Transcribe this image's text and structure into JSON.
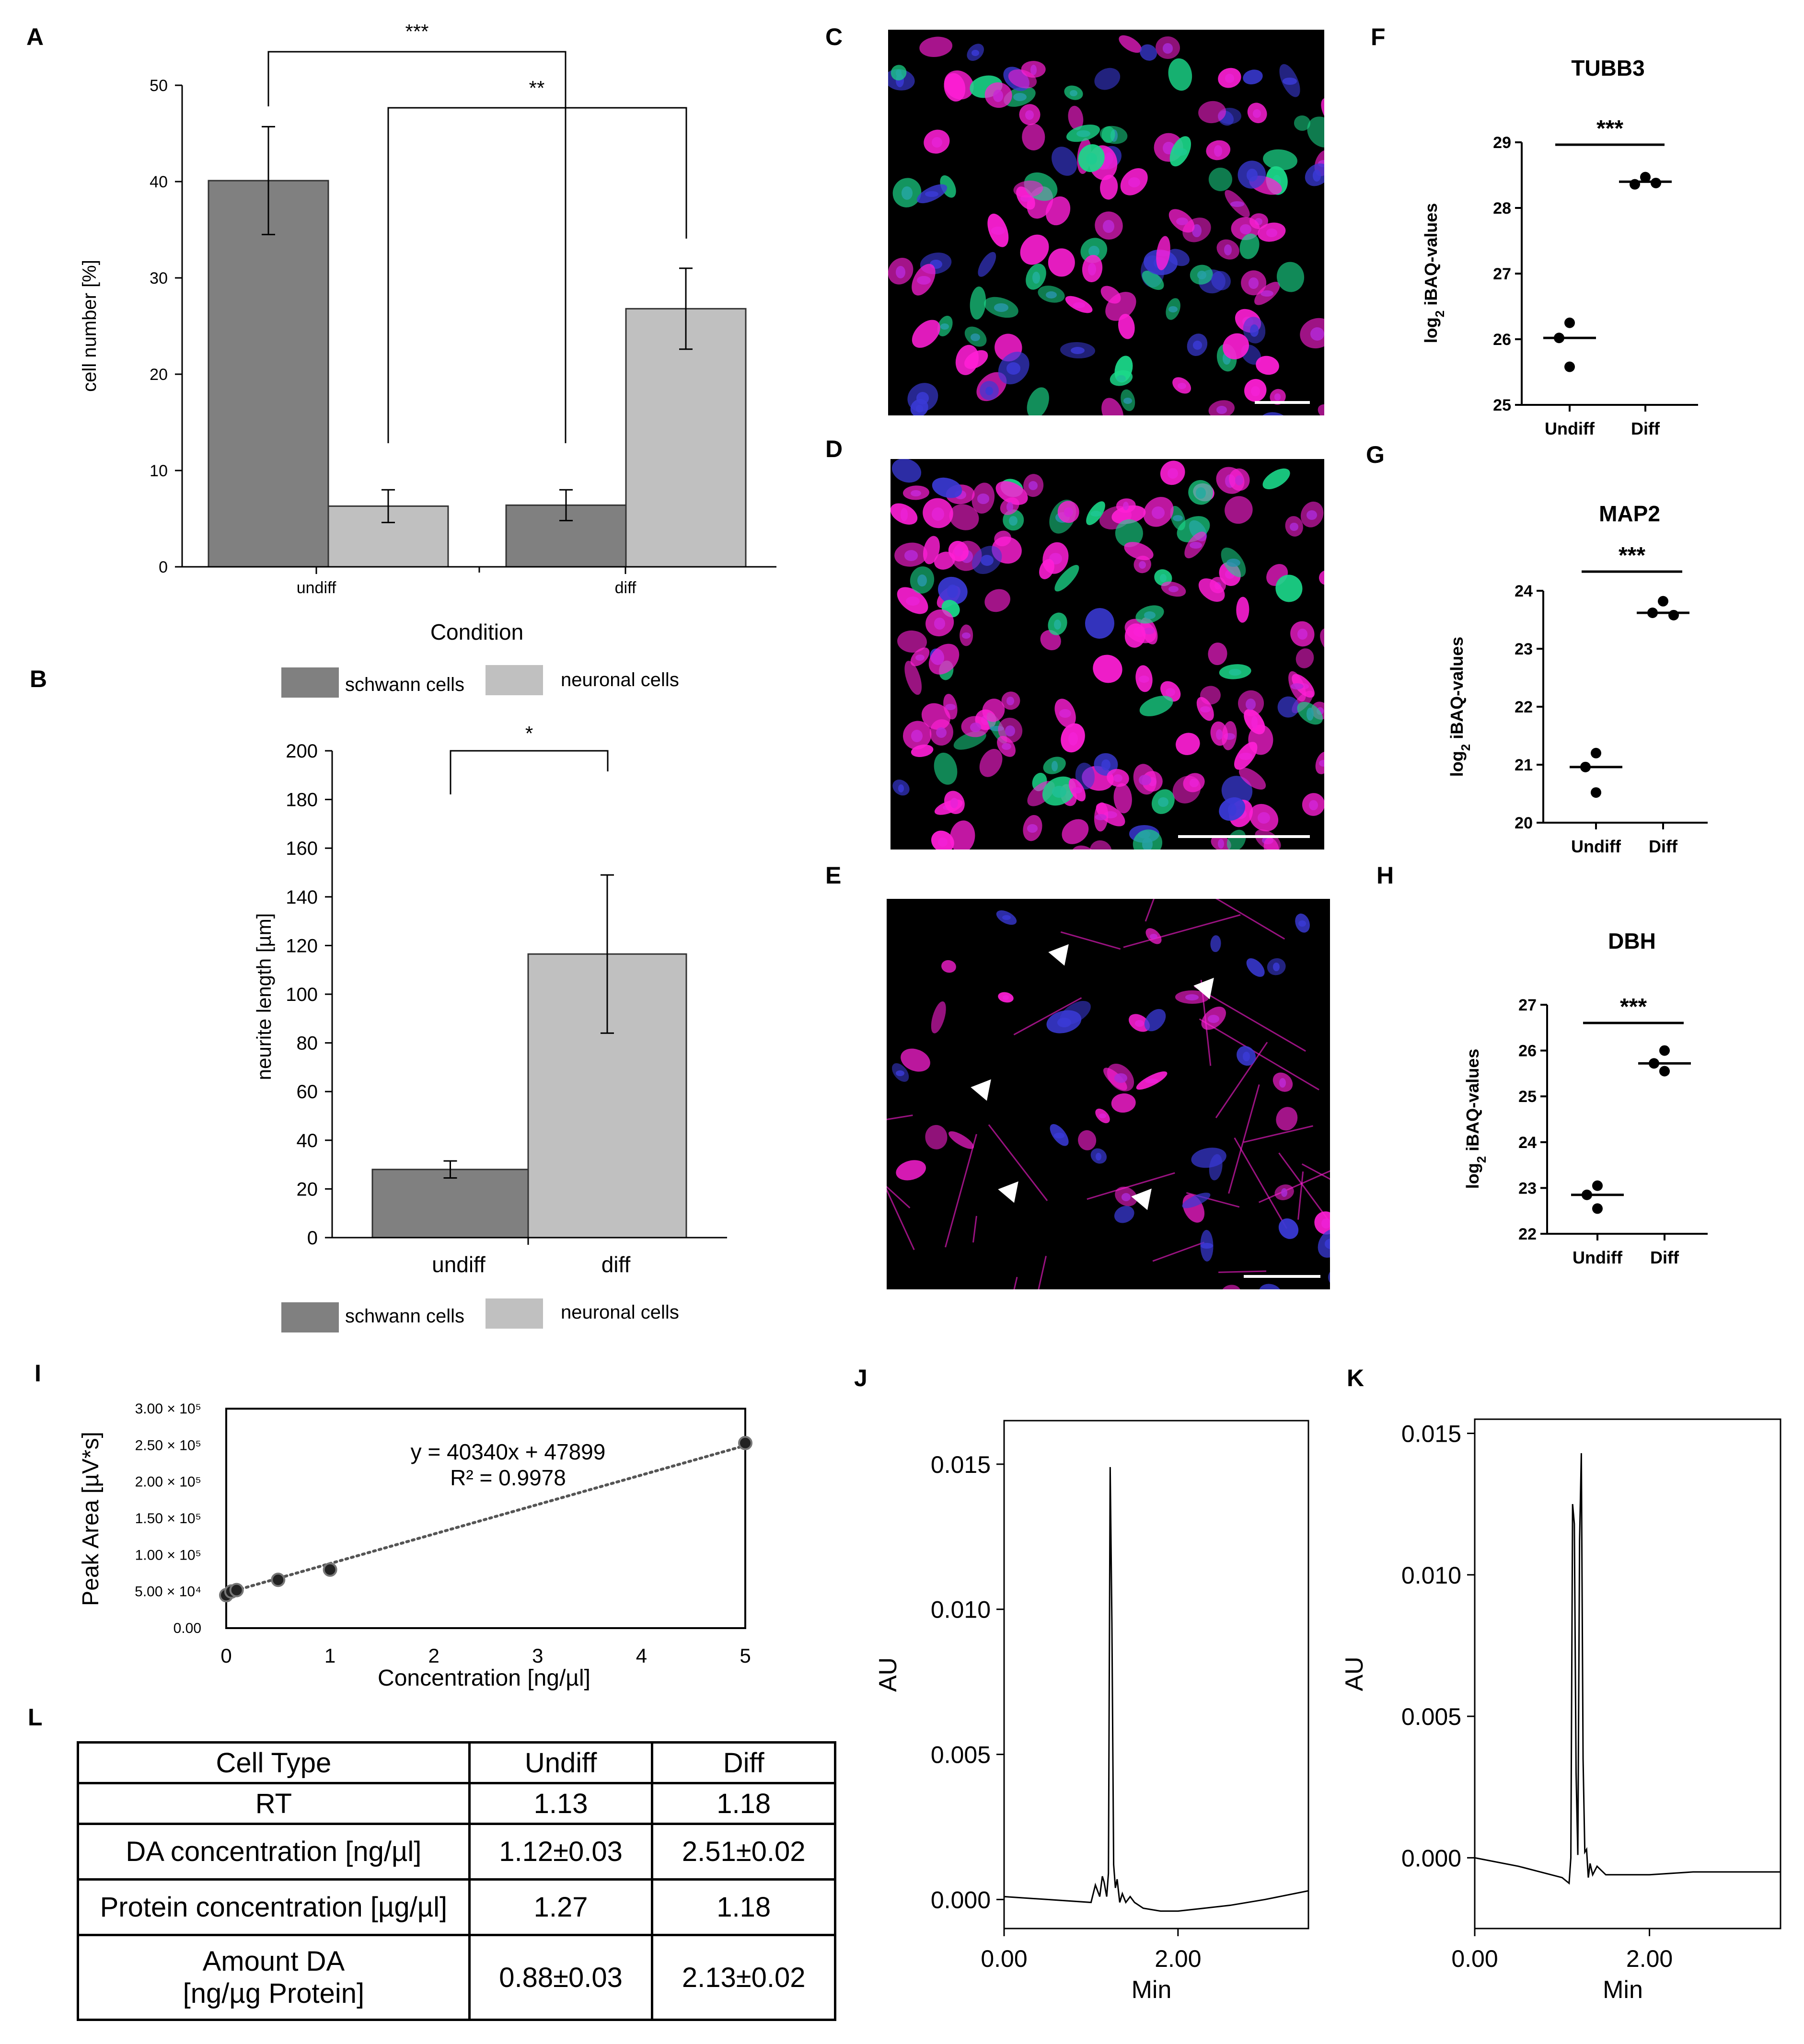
{
  "panels": [
    "A",
    "B",
    "C",
    "D",
    "E",
    "F",
    "G",
    "H",
    "I",
    "J",
    "K",
    "L"
  ],
  "colors": {
    "schwann": "#808080",
    "neuronal": "#c0c0c0",
    "magenta": "#ff1fd6",
    "green": "#1bd98a",
    "blue": "#3a3ad6"
  },
  "icons": {
    "arrowhead": "white-arrowhead-icon",
    "scalebar": "scale-bar"
  },
  "chart_data": [
    {
      "id": "A",
      "type": "bar",
      "categories": [
        "undiff",
        "diff"
      ],
      "series": [
        {
          "name": "schwann cells",
          "values": [
            40.1,
            6.4
          ],
          "errors": [
            5.6,
            1.6
          ]
        },
        {
          "name": "neuronal cells",
          "values": [
            6.3,
            26.8
          ],
          "errors": [
            1.7,
            4.2
          ]
        }
      ],
      "xlabel": "Condition",
      "ylabel": "cell number [%]",
      "ylim": [
        0,
        50
      ],
      "yticks": [
        "0",
        "10",
        "20",
        "30",
        "40",
        "50"
      ],
      "legend_position": "bottom",
      "significance": [
        "***",
        "**"
      ]
    },
    {
      "id": "B",
      "type": "bar",
      "categories": [
        "undiff",
        "diff"
      ],
      "series": [
        {
          "name": "",
          "values": [
            28,
            116.5
          ],
          "errors": [
            3.5,
            32.5
          ]
        }
      ],
      "legend_series": [
        "schwann cells",
        "neuronal cells"
      ],
      "ylabel": "neurite length [µm]",
      "ylim": [
        0,
        200
      ],
      "yticks": [
        "0",
        "20",
        "40",
        "60",
        "80",
        "100",
        "120",
        "140",
        "160",
        "180",
        "200"
      ],
      "legend_position": "bottom",
      "significance": [
        "*"
      ]
    },
    {
      "id": "F",
      "type": "scatter",
      "title": "TUBB3",
      "ylabel_main": "log",
      "ylabel_sub": "2",
      "ylabel_rest": " iBAQ-values",
      "ylim": [
        25,
        29
      ],
      "yticks": [
        "25",
        "26",
        "27",
        "28",
        "29"
      ],
      "groups": [
        {
          "name": "Undiff",
          "points": [
            26.25,
            26.02,
            25.58
          ],
          "mean": 26.02
        },
        {
          "name": "Diff",
          "points": [
            28.47,
            28.36,
            28.38
          ],
          "mean": 28.4
        }
      ],
      "significance": "***"
    },
    {
      "id": "G",
      "type": "scatter",
      "title": "MAP2",
      "ylabel_main": "log",
      "ylabel_sub": "2",
      "ylabel_rest": " iBAQ-values",
      "ylim": [
        20,
        24
      ],
      "yticks": [
        "20",
        "21",
        "22",
        "23",
        "24"
      ],
      "groups": [
        {
          "name": "Undiff",
          "points": [
            21.2,
            20.96,
            20.52
          ],
          "mean": 20.96
        },
        {
          "name": "Diff",
          "points": [
            23.82,
            23.62,
            23.58
          ],
          "mean": 23.62
        }
      ],
      "significance": "***"
    },
    {
      "id": "H",
      "type": "scatter",
      "title": "DBH",
      "ylabel_main": "log",
      "ylabel_sub": "2",
      "ylabel_rest": " iBAQ-values",
      "ylim": [
        22,
        27
      ],
      "yticks": [
        "22",
        "23",
        "24",
        "25",
        "26",
        "27"
      ],
      "groups": [
        {
          "name": "Undiff",
          "points": [
            23.05,
            22.85,
            22.55
          ],
          "mean": 22.85
        },
        {
          "name": "Diff",
          "points": [
            26.0,
            25.72,
            25.55
          ],
          "mean": 25.72
        }
      ],
      "significance": "***"
    },
    {
      "id": "I",
      "type": "scatter",
      "x": [
        0,
        0.05,
        0.1,
        0.5,
        1,
        5
      ],
      "y": [
        45000,
        50000,
        52000,
        66000,
        80000,
        253000
      ],
      "xlabel": "Concentration [ng/µl]",
      "ylabel": "Peak Area [µV*s]",
      "xlim": [
        0,
        5
      ],
      "ylim": [
        0,
        300000
      ],
      "xticks": [
        "0",
        "1",
        "2",
        "3",
        "4",
        "5"
      ],
      "yticks": [
        "0.00",
        "5.00 × 10⁴",
        "1.00 × 10⁵",
        "1.50 × 10⁵",
        "2.00 × 10⁵",
        "2.50 × 10⁵",
        "3.00 × 10⁵"
      ],
      "trend": {
        "slope": 40340,
        "intercept": 47899
      },
      "equation": "y = 40340x + 47899",
      "r2": "R² = 0.9978"
    },
    {
      "id": "J",
      "type": "line",
      "xlabel": "Min",
      "ylabel": "AU",
      "xlim": [
        0,
        3.5
      ],
      "ylim": [
        -0.001,
        0.0165
      ],
      "xticks": [
        "0.00",
        "2.00"
      ],
      "yticks": [
        "0.000",
        "0.005",
        "0.010",
        "0.015"
      ],
      "x": [
        0,
        0.5,
        1.0,
        1.05,
        1.1,
        1.13,
        1.15,
        1.18,
        1.2,
        1.22,
        1.24,
        1.26,
        1.28,
        1.3,
        1.33,
        1.36,
        1.4,
        1.45,
        1.5,
        1.6,
        1.8,
        2.0,
        2.3,
        2.6,
        3.0,
        3.5
      ],
      "y": [
        0.0001,
        0.0,
        -0.0001,
        0.0005,
        0.0001,
        0.0008,
        0.0006,
        0.0001,
        0.0009,
        0.0149,
        0.0095,
        0.0012,
        0.0004,
        0.0007,
        -0.0001,
        0.0002,
        -0.0001,
        0.0001,
        -0.0001,
        -0.0003,
        -0.0004,
        -0.0004,
        -0.0003,
        -0.0002,
        0.0,
        0.0003
      ]
    },
    {
      "id": "K",
      "type": "line",
      "xlabel": "Min",
      "ylabel": "AU",
      "xlim": [
        0,
        3.5
      ],
      "ylim": [
        -0.0025,
        0.0155
      ],
      "xticks": [
        "0.00",
        "2.00"
      ],
      "yticks": [
        "0.000",
        "0.005",
        "0.010",
        "0.015"
      ],
      "x": [
        0,
        0.5,
        1.0,
        1.08,
        1.1,
        1.12,
        1.14,
        1.16,
        1.18,
        1.2,
        1.22,
        1.24,
        1.26,
        1.28,
        1.3,
        1.32,
        1.35,
        1.4,
        1.5,
        1.7,
        2.0,
        2.5,
        3.0,
        3.5
      ],
      "y": [
        0.0,
        -0.0003,
        -0.0007,
        -0.0009,
        0.0,
        0.0125,
        0.0118,
        0.003,
        0.0001,
        0.0112,
        0.0143,
        0.0035,
        0.0002,
        0.0003,
        -0.0007,
        -0.0002,
        -0.0006,
        -0.0003,
        -0.0006,
        -0.0006,
        -0.0006,
        -0.0005,
        -0.0005,
        -0.0005
      ]
    }
  ],
  "table": {
    "header": [
      "Cell Type",
      "Undiff",
      "Diff"
    ],
    "rows": [
      [
        "RT",
        "1.13",
        "1.18"
      ],
      [
        "DA concentration [ng/µl]",
        "1.12±0.03",
        "2.51±0.02"
      ],
      [
        "Protein concentration [µg/µl]",
        "1.27",
        "1.18"
      ]
    ],
    "last_row": {
      "label_line1": "Amount DA",
      "label_line2": "[ng/µg Protein]",
      "undiff": "0.88±0.03",
      "diff": "2.13±0.02"
    }
  }
}
